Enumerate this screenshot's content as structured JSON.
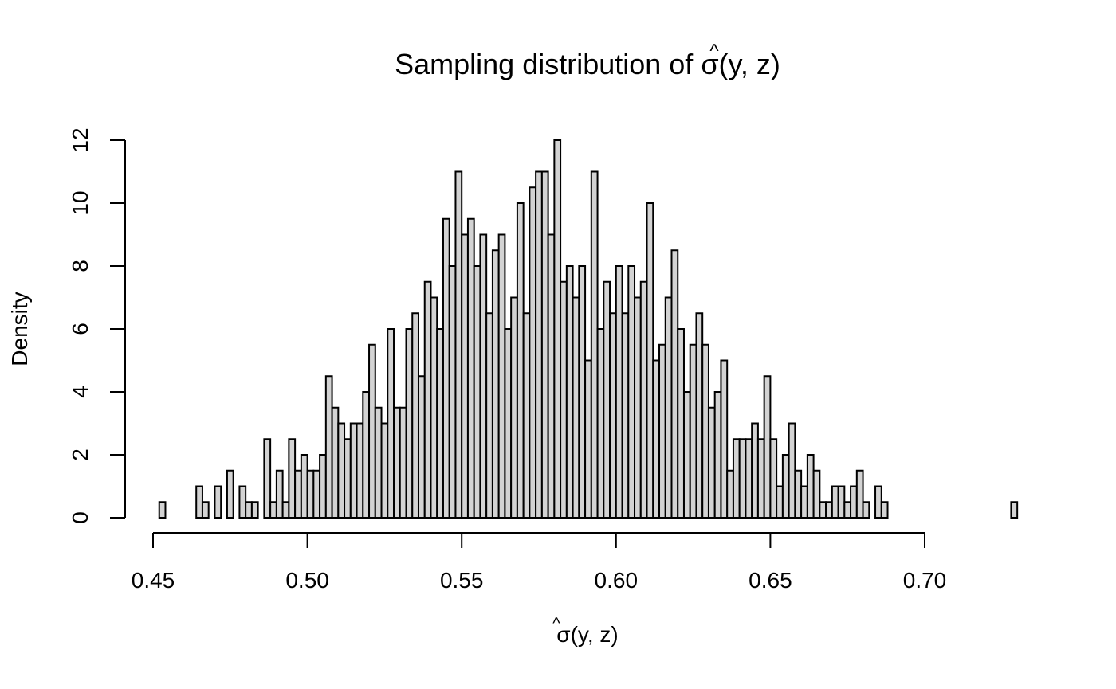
{
  "chart_data": {
    "type": "bar",
    "title": {
      "prefix": "Sampling distribution of ",
      "hat": "^",
      "symbol": "σ",
      "open": "(",
      "args": "y, z",
      "close": ")"
    },
    "xlabel": {
      "hat": "^",
      "symbol": "σ",
      "open": "(",
      "args": "y, z",
      "close": ")"
    },
    "ylabel": "Density",
    "bin_width": 0.002,
    "bin_start": 0.452,
    "xlim": [
      0.45,
      0.7
    ],
    "ylim": [
      0,
      12
    ],
    "x_ticks": [
      0.45,
      0.5,
      0.55,
      0.6,
      0.65,
      0.7
    ],
    "x_tick_labels": [
      "0.45",
      "0.50",
      "0.55",
      "0.60",
      "0.65",
      "0.70"
    ],
    "y_ticks": [
      0,
      2,
      4,
      6,
      8,
      10,
      12
    ],
    "y_tick_labels": [
      "0",
      "2",
      "4",
      "6",
      "8",
      "10",
      "12"
    ],
    "values": [
      0.5,
      0,
      0,
      0,
      0,
      0,
      1,
      0.5,
      0,
      1,
      0,
      1.5,
      0,
      1,
      0.5,
      0.5,
      0,
      2.5,
      0.5,
      1.5,
      0.5,
      2.5,
      1.5,
      2,
      1.5,
      1.5,
      2,
      4.5,
      3.5,
      3,
      2.5,
      3,
      3,
      4,
      5.5,
      3.5,
      3,
      6,
      3.5,
      3.5,
      6,
      6.5,
      4.5,
      7.5,
      7,
      6,
      9.5,
      8,
      11,
      9,
      9.5,
      8,
      9,
      6.5,
      8.5,
      9,
      6,
      7,
      10,
      6.5,
      10.5,
      11,
      11,
      9,
      12,
      7.5,
      8,
      7,
      8,
      5,
      11,
      6,
      7.5,
      6.5,
      8,
      6.5,
      8,
      7,
      7.5,
      10,
      5,
      5.5,
      7,
      8.5,
      6,
      4,
      5.5,
      6.5,
      5.5,
      3.5,
      4,
      5,
      1.5,
      2.5,
      2.5,
      2.5,
      3,
      2.5,
      4.5,
      2.5,
      1,
      2,
      3,
      1.5,
      1,
      2,
      1.5,
      0.5,
      0.5,
      1,
      1,
      0.5,
      1,
      1.5,
      0.5,
      0,
      1,
      0.5,
      0,
      0,
      0,
      0,
      0,
      0,
      0,
      0,
      0,
      0,
      0,
      0,
      0,
      0,
      0,
      0,
      0,
      0,
      0,
      0,
      0.5
    ]
  }
}
